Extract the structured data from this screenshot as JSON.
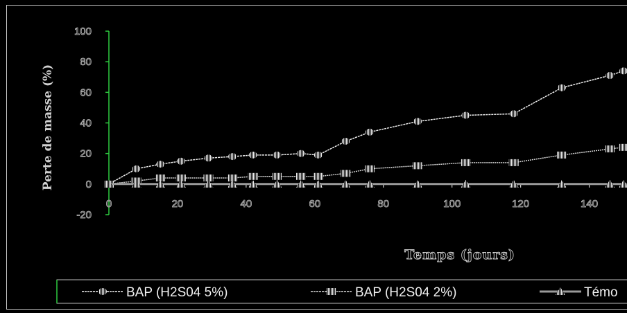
{
  "chart_data": {
    "type": "line",
    "xlabel": "Temps (jours)",
    "ylabel": "Perte de masse (%)",
    "xlim": [
      0,
      150
    ],
    "ylim": [
      -20,
      100
    ],
    "x_ticks": [
      0,
      20,
      40,
      60,
      80,
      100,
      120,
      140
    ],
    "y_ticks": [
      -20,
      0,
      20,
      40,
      60,
      80,
      100
    ],
    "grid": false,
    "legend_position": "bottom",
    "series": [
      {
        "name": "BAP (H2S04 5%)",
        "color": "#f0f0f0",
        "marker": "circle-striped",
        "x": [
          0,
          8,
          15,
          21,
          29,
          36,
          42,
          49,
          56,
          61,
          69,
          76,
          90,
          104,
          118,
          132,
          146,
          150
        ],
        "y": [
          0,
          10,
          13,
          15,
          17,
          18,
          19,
          19,
          20,
          19,
          28,
          34,
          41,
          45,
          46,
          63,
          71,
          74
        ]
      },
      {
        "name": "BAP (H2S04 2%)",
        "color": "#d8d8d8",
        "marker": "square-striped",
        "x": [
          0,
          8,
          15,
          21,
          29,
          36,
          42,
          49,
          56,
          61,
          69,
          76,
          90,
          104,
          118,
          132,
          146,
          150
        ],
        "y": [
          0,
          2,
          4,
          4,
          4,
          4,
          5,
          5,
          5,
          5,
          7,
          10,
          12,
          14,
          14,
          19,
          23,
          24
        ]
      },
      {
        "name": "Témo",
        "color": "#9a9a9a",
        "marker": "triangle-striped",
        "x": [
          0,
          8,
          15,
          21,
          29,
          36,
          42,
          49,
          56,
          61,
          69,
          76,
          90,
          104,
          118,
          132,
          146,
          150
        ],
        "y": [
          0,
          0,
          0,
          0,
          0,
          0,
          0,
          0,
          0,
          0,
          0,
          0,
          0,
          0,
          0,
          0,
          0,
          0
        ]
      }
    ]
  }
}
